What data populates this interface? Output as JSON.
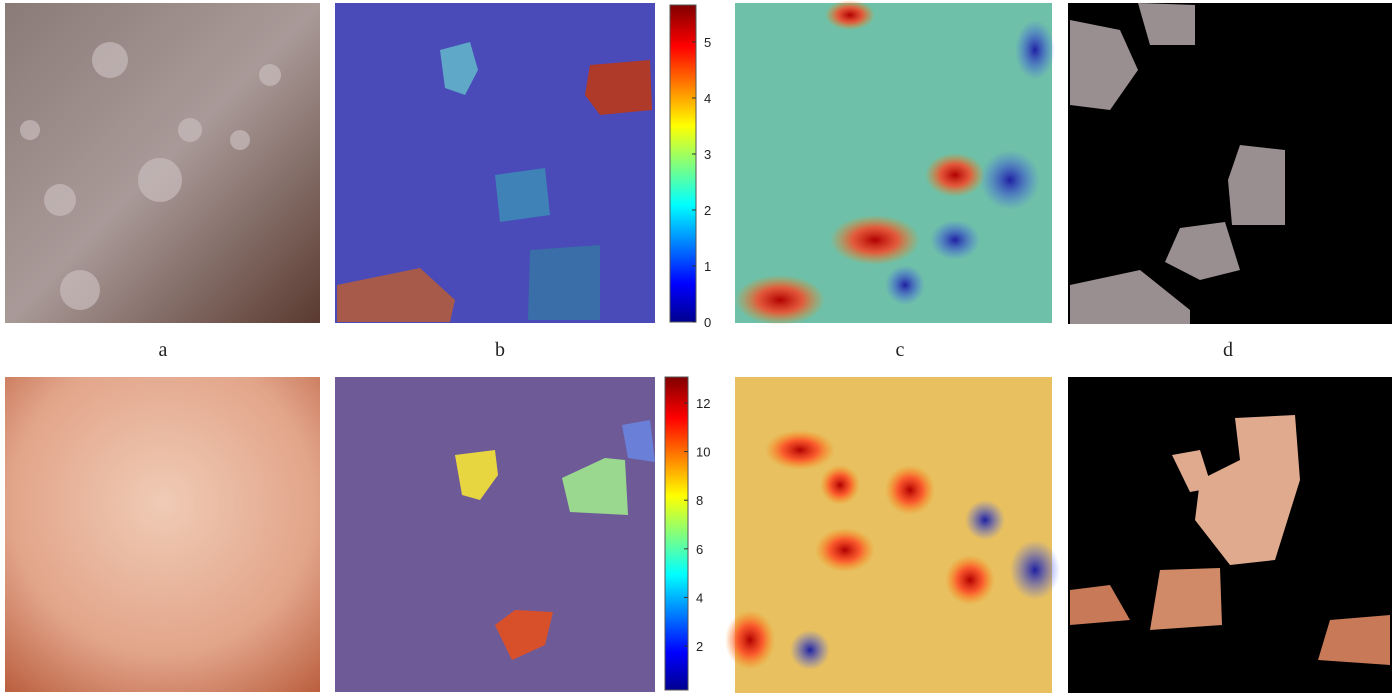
{
  "figure": {
    "rows": [
      {
        "panel_labels": [
          "a",
          "b",
          "c",
          "d"
        ],
        "colorbar": {
          "lim": [
            0,
            5.66
          ],
          "ticks": [
            0,
            1,
            2,
            3,
            4,
            5
          ]
        }
      },
      {
        "colorbar": {
          "lim": [
            0.19,
            13.07
          ],
          "ticks": [
            2,
            4,
            6,
            8,
            10,
            12
          ]
        }
      }
    ]
  }
}
